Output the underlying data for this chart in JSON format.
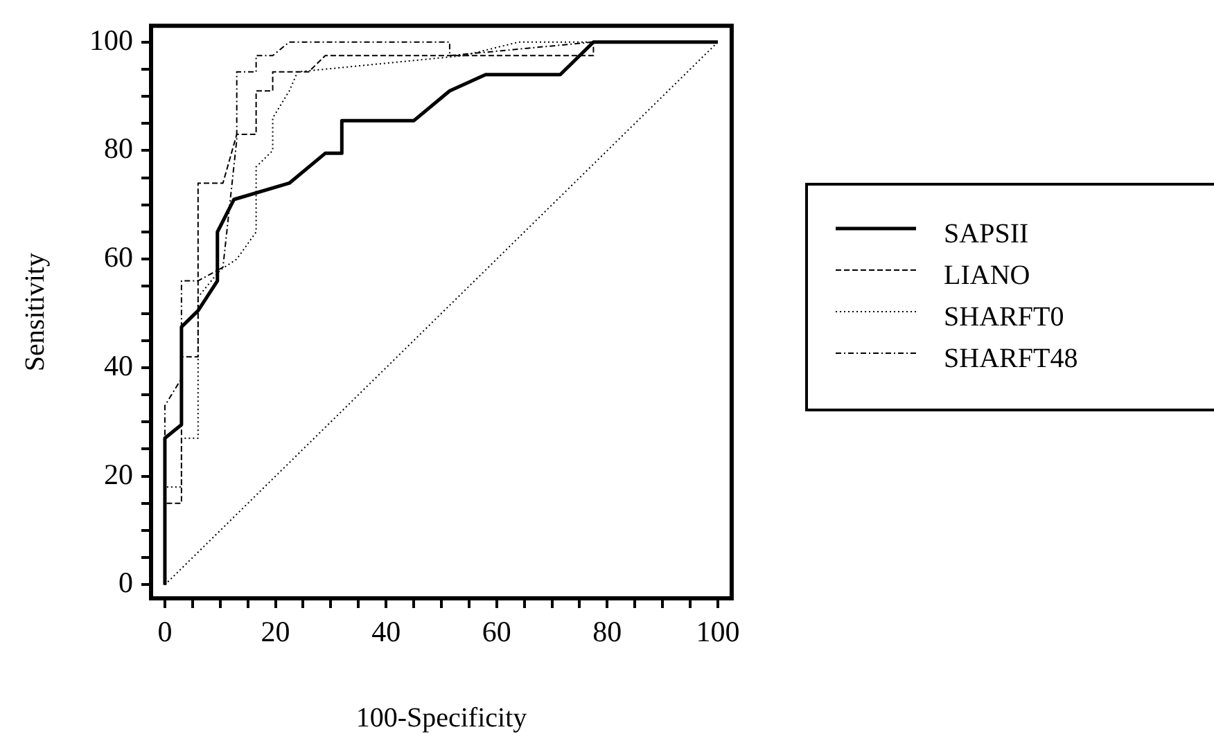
{
  "chart_data": {
    "type": "line",
    "xlabel": "100-Specificity",
    "ylabel": "Sensitivity",
    "xlim": [
      -2.5,
      102.5
    ],
    "ylim": [
      -2.5,
      103
    ],
    "xticks": [
      0,
      {
        "value": 5,
        "label": null
      },
      {
        "value": 10,
        "label": null
      },
      {
        "value": 15,
        "label": null
      },
      20,
      {
        "value": 25,
        "label": null
      },
      {
        "value": 30,
        "label": null
      },
      {
        "value": 35,
        "label": null
      },
      40,
      {
        "value": 45,
        "label": null
      },
      {
        "value": 50,
        "label": null
      },
      {
        "value": 55,
        "label": null
      },
      60,
      {
        "value": 65,
        "label": null
      },
      {
        "value": 70,
        "label": null
      },
      {
        "value": 75,
        "label": null
      },
      80,
      {
        "value": 85,
        "label": null
      },
      {
        "value": 90,
        "label": null
      },
      {
        "value": 95,
        "label": null
      },
      100
    ],
    "yticks": [
      0,
      {
        "value": 5,
        "label": null
      },
      {
        "value": 10,
        "label": null
      },
      {
        "value": 15,
        "label": null
      },
      20,
      {
        "value": 25,
        "label": null
      },
      {
        "value": 30,
        "label": null
      },
      {
        "value": 35,
        "label": null
      },
      40,
      {
        "value": 45,
        "label": null
      },
      {
        "value": 50,
        "label": null
      },
      {
        "value": 55,
        "label": null
      },
      60,
      {
        "value": 65,
        "label": null
      },
      {
        "value": 70,
        "label": null
      },
      {
        "value": 75,
        "label": null
      },
      80,
      {
        "value": 85,
        "label": null
      },
      {
        "value": 90,
        "label": null
      },
      {
        "value": 95,
        "label": null
      },
      100
    ],
    "grid": false,
    "legend": "right",
    "marker": "none",
    "series": [
      {
        "name": "SAPSII",
        "color": "#000000",
        "line_style": "solid",
        "x": [
          0,
          0,
          3,
          3,
          6,
          9.5,
          9.5,
          12.5,
          22.5,
          29,
          32,
          32,
          45,
          51.5,
          58,
          71.5,
          77.5,
          100
        ],
        "values": [
          0,
          27,
          29.5,
          47.5,
          50.5,
          56,
          65,
          71,
          74,
          79.5,
          79.5,
          85.5,
          85.5,
          91,
          94,
          94,
          100,
          100
        ]
      },
      {
        "name": "LIANO",
        "color": "#000000",
        "line_style": "dashed",
        "x": [
          0,
          0,
          3,
          3,
          6,
          6,
          10.5,
          13,
          16.5,
          16.5,
          19.5,
          19.5,
          26,
          29,
          77.5,
          77.5,
          100
        ],
        "values": [
          0,
          15,
          15,
          42,
          42,
          74,
          74,
          83,
          83,
          91,
          91,
          94.5,
          94.5,
          97.5,
          97.5,
          100,
          100
        ]
      },
      {
        "name": "SHARFT0",
        "color": "#000000",
        "line_style": "dotted",
        "x": [
          0,
          0,
          3,
          3,
          6,
          6,
          10,
          13,
          16.5,
          16.5,
          19.5,
          19.5,
          22.5,
          24,
          54,
          64,
          100
        ],
        "values": [
          0,
          18,
          18,
          27,
          27,
          53,
          58,
          60,
          65,
          77,
          80,
          86,
          91,
          94.5,
          97.5,
          100,
          100
        ]
      },
      {
        "name": "SHARFT48",
        "color": "#000000",
        "line_style": "dashdot",
        "x": [
          0,
          0,
          3,
          3,
          6,
          10.5,
          13,
          13,
          16.5,
          16.5,
          19.5,
          22.5,
          51.5,
          51.5,
          77.5,
          100
        ],
        "values": [
          0,
          33,
          38,
          56,
          56,
          58.5,
          82,
          94.5,
          94.5,
          97.5,
          97.5,
          100,
          100,
          97.5,
          100,
          100
        ]
      },
      {
        "color": "#000000",
        "line_style": "dotted",
        "x": [
          0,
          100
        ],
        "values": [
          0,
          100
        ]
      }
    ]
  }
}
